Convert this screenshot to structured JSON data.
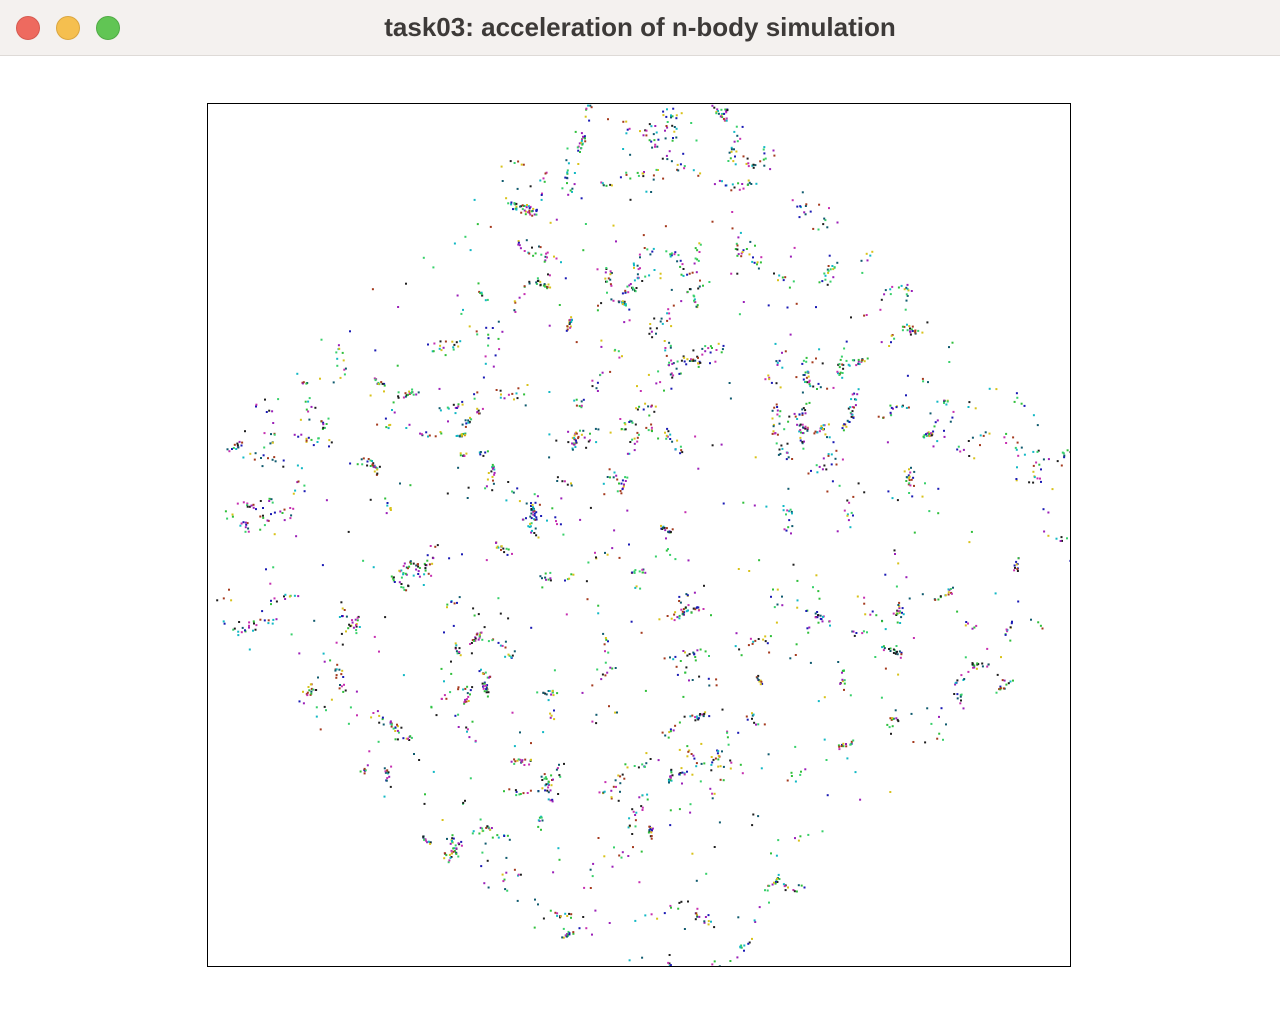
{
  "window": {
    "title": "task03: acceleration of n-body simulation",
    "controls": {
      "close_icon": "close-icon",
      "minimize_icon": "minimize-icon",
      "zoom_icon": "zoom-icon"
    }
  },
  "simulation": {
    "particle_colors": [
      "#1e1e1e",
      "#1a1ab4",
      "#9b1fb8",
      "#2fbf3a",
      "#12b8c4",
      "#d8c21a",
      "#a43a1e",
      "#c62fb0",
      "#37d06a",
      "#0f5a6e"
    ],
    "background": "#ffffff",
    "border": "#000000"
  }
}
